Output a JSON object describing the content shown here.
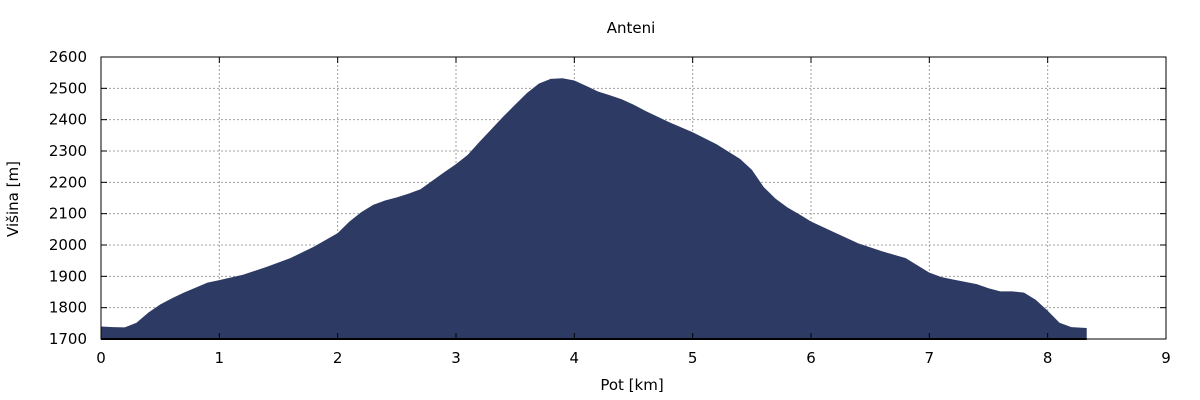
{
  "chart_data": {
    "type": "area",
    "title": "Anteni",
    "xlabel": "Pot [km]",
    "ylabel": "Višina [m]",
    "xlim": [
      0,
      9
    ],
    "ylim": [
      1700,
      2600
    ],
    "xticks": [
      0,
      1,
      2,
      3,
      4,
      5,
      6,
      7,
      8,
      9
    ],
    "yticks": [
      1700,
      1800,
      1900,
      2000,
      2100,
      2200,
      2300,
      2400,
      2500,
      2600
    ],
    "grid": true,
    "fill_color": "#2d3a64",
    "x": [
      0,
      0.1,
      0.2,
      0.3,
      0.4,
      0.5,
      0.6,
      0.7,
      0.8,
      0.9,
      1.0,
      1.2,
      1.4,
      1.6,
      1.8,
      2.0,
      2.1,
      2.2,
      2.3,
      2.4,
      2.5,
      2.6,
      2.7,
      2.8,
      2.9,
      3.0,
      3.1,
      3.2,
      3.3,
      3.4,
      3.5,
      3.6,
      3.7,
      3.8,
      3.9,
      4.0,
      4.1,
      4.2,
      4.3,
      4.4,
      4.5,
      4.6,
      4.8,
      5.0,
      5.2,
      5.4,
      5.5,
      5.6,
      5.7,
      5.8,
      5.9,
      6.0,
      6.2,
      6.4,
      6.6,
      6.8,
      6.9,
      7.0,
      7.1,
      7.2,
      7.4,
      7.5,
      7.6,
      7.7,
      7.8,
      7.9,
      8.0,
      8.1,
      8.2,
      8.33
    ],
    "y": [
      1740,
      1738,
      1737,
      1752,
      1784,
      1810,
      1830,
      1848,
      1864,
      1880,
      1888,
      1905,
      1930,
      1958,
      1995,
      2038,
      2075,
      2105,
      2128,
      2142,
      2152,
      2164,
      2178,
      2205,
      2232,
      2258,
      2288,
      2330,
      2370,
      2410,
      2448,
      2485,
      2515,
      2530,
      2532,
      2525,
      2508,
      2490,
      2478,
      2465,
      2448,
      2428,
      2392,
      2360,
      2322,
      2275,
      2240,
      2185,
      2148,
      2120,
      2098,
      2075,
      2040,
      2005,
      1980,
      1958,
      1935,
      1912,
      1898,
      1890,
      1875,
      1862,
      1852,
      1852,
      1848,
      1825,
      1790,
      1752,
      1738,
      1735
    ]
  }
}
